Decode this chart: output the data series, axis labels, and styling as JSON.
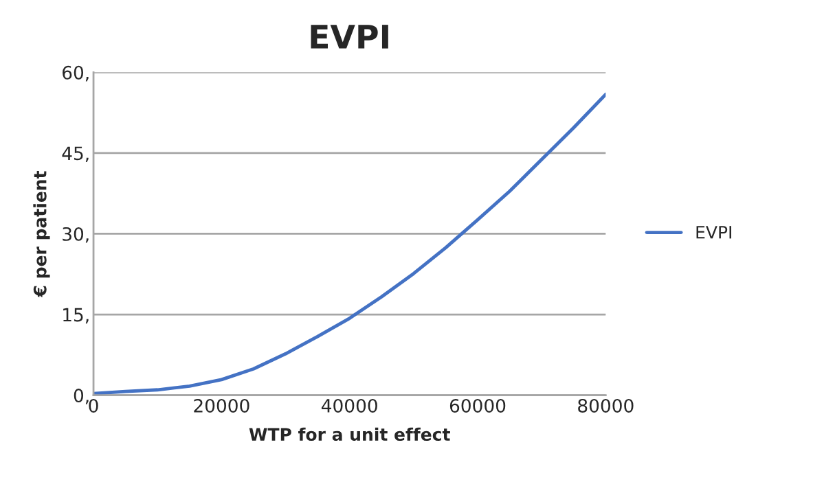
{
  "chart_data": {
    "type": "line",
    "title": "EVPI",
    "xlabel": "WTP for a unit effect",
    "ylabel": "€ per patient",
    "x": [
      0,
      5000,
      10000,
      15000,
      20000,
      25000,
      30000,
      35000,
      40000,
      45000,
      50000,
      55000,
      60000,
      65000,
      70000,
      75000,
      80000
    ],
    "series": [
      {
        "name": "EVPI",
        "color": "#4472c4",
        "values": [
          0.3,
          0.7,
          1.0,
          1.7,
          2.9,
          4.9,
          7.7,
          10.9,
          14.3,
          18.3,
          22.6,
          27.4,
          32.6,
          37.9,
          43.8,
          49.7,
          55.9
        ]
      }
    ],
    "xlim": [
      0,
      80000
    ],
    "xticks": [
      0,
      20000,
      40000,
      60000,
      80000
    ],
    "ylim": [
      0,
      60
    ],
    "yticks": [
      {
        "value": 0,
        "label": "0,"
      },
      {
        "value": 15,
        "label": "15,"
      },
      {
        "value": 30,
        "label": "30,"
      },
      {
        "value": 45,
        "label": "45,"
      },
      {
        "value": 60,
        "label": "60,"
      }
    ],
    "grid": "y",
    "legend": "right",
    "marker": "none",
    "line_style": "solid"
  }
}
